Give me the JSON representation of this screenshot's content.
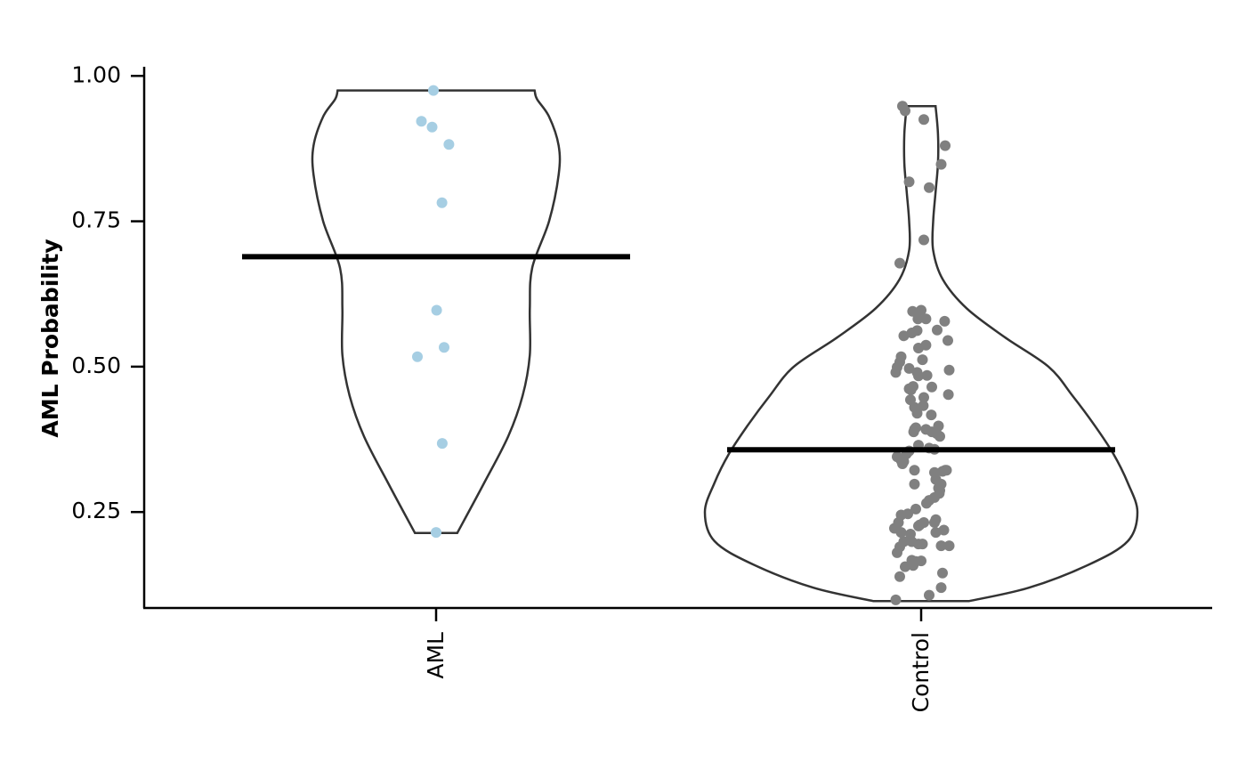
{
  "chart_data": {
    "type": "violin",
    "title": "",
    "xlabel": "",
    "ylabel": "AML Probability",
    "ylim": [
      0.085,
      1.0157
    ],
    "yticks": [
      0.25,
      0.5,
      0.75,
      1.0
    ],
    "ytick_labels": [
      "0.25",
      "0.50",
      "0.75",
      "1.00"
    ],
    "categories": [
      "AML",
      "Control"
    ],
    "grid": false,
    "legend": "none",
    "colors": {
      "AML": "#a6cee3",
      "Control": "#808080",
      "violin_outline": "#333333",
      "mean_line": "#000000",
      "axis": "#000000"
    },
    "groups": [
      {
        "name": "AML",
        "mean": 0.689,
        "range": [
          0.214,
          0.975
        ],
        "density": [
          [
            0.214,
            0.088
          ],
          [
            0.3,
            0.2
          ],
          [
            0.38,
            0.3
          ],
          [
            0.45,
            0.36
          ],
          [
            0.52,
            0.39
          ],
          [
            0.6,
            0.39
          ],
          [
            0.67,
            0.4
          ],
          [
            0.75,
            0.47
          ],
          [
            0.83,
            0.51
          ],
          [
            0.88,
            0.51
          ],
          [
            0.93,
            0.47
          ],
          [
            0.96,
            0.42
          ],
          [
            0.975,
            0.41
          ]
        ],
        "points": [
          [
            -0.01,
            0.975
          ],
          [
            -0.055,
            0.922
          ],
          [
            -0.015,
            0.912
          ],
          [
            0.048,
            0.882
          ],
          [
            0.022,
            0.782
          ],
          [
            0.002,
            0.597
          ],
          [
            0.03,
            0.533
          ],
          [
            -0.07,
            0.517
          ],
          [
            0.023,
            0.368
          ],
          [
            0.0,
            0.215
          ]
        ]
      },
      {
        "name": "Control",
        "mean": 0.357,
        "range": [
          0.097,
          0.948
        ],
        "density": [
          [
            0.097,
            0.2
          ],
          [
            0.12,
            0.45
          ],
          [
            0.16,
            0.7
          ],
          [
            0.2,
            0.86
          ],
          [
            0.25,
            0.9
          ],
          [
            0.3,
            0.86
          ],
          [
            0.35,
            0.8
          ],
          [
            0.4,
            0.72
          ],
          [
            0.45,
            0.63
          ],
          [
            0.5,
            0.53
          ],
          [
            0.55,
            0.35
          ],
          [
            0.6,
            0.19
          ],
          [
            0.65,
            0.09
          ],
          [
            0.7,
            0.05
          ],
          [
            0.75,
            0.05
          ],
          [
            0.8,
            0.06
          ],
          [
            0.85,
            0.07
          ],
          [
            0.9,
            0.07
          ],
          [
            0.948,
            0.06
          ]
        ],
        "points": [
          [
            -0.07,
            0.948
          ],
          [
            -0.06,
            0.94
          ],
          [
            0.01,
            0.925
          ],
          [
            0.09,
            0.88
          ],
          [
            0.075,
            0.848
          ],
          [
            -0.045,
            0.818
          ],
          [
            0.03,
            0.808
          ],
          [
            0.01,
            0.718
          ],
          [
            -0.08,
            0.678
          ],
          [
            -0.032,
            0.595
          ],
          [
            0.0,
            0.597
          ],
          [
            0.018,
            0.582
          ],
          [
            -0.012,
            0.582
          ],
          [
            0.088,
            0.578
          ],
          [
            0.06,
            0.563
          ],
          [
            -0.015,
            0.562
          ],
          [
            -0.035,
            0.558
          ],
          [
            -0.065,
            0.553
          ],
          [
            0.1,
            0.545
          ],
          [
            0.018,
            0.537
          ],
          [
            -0.01,
            0.532
          ],
          [
            -0.075,
            0.517
          ],
          [
            0.005,
            0.512
          ],
          [
            -0.08,
            0.508
          ],
          [
            -0.09,
            0.499
          ],
          [
            -0.045,
            0.497
          ],
          [
            0.105,
            0.494
          ],
          [
            -0.095,
            0.49
          ],
          [
            -0.015,
            0.49
          ],
          [
            0.022,
            0.485
          ],
          [
            -0.01,
            0.484
          ],
          [
            -0.03,
            0.466
          ],
          [
            0.04,
            0.465
          ],
          [
            -0.038,
            0.46
          ],
          [
            -0.045,
            0.462
          ],
          [
            0.102,
            0.452
          ],
          [
            0.01,
            0.447
          ],
          [
            -0.04,
            0.443
          ],
          [
            0.008,
            0.433
          ],
          [
            -0.025,
            0.43
          ],
          [
            -0.015,
            0.42
          ],
          [
            0.038,
            0.417
          ],
          [
            0.065,
            0.398
          ],
          [
            -0.02,
            0.395
          ],
          [
            -0.025,
            0.392
          ],
          [
            0.018,
            0.392
          ],
          [
            0.04,
            0.388
          ],
          [
            0.058,
            0.385
          ],
          [
            0.07,
            0.38
          ],
          [
            -0.028,
            0.388
          ],
          [
            -0.01,
            0.365
          ],
          [
            0.03,
            0.36
          ],
          [
            0.05,
            0.358
          ],
          [
            -0.045,
            0.355
          ],
          [
            -0.055,
            0.35
          ],
          [
            -0.09,
            0.345
          ],
          [
            -0.065,
            0.337
          ],
          [
            -0.075,
            0.339
          ],
          [
            -0.07,
            0.333
          ],
          [
            0.09,
            0.322
          ],
          [
            0.095,
            0.322
          ],
          [
            -0.025,
            0.322
          ],
          [
            0.05,
            0.318
          ],
          [
            0.08,
            0.32
          ],
          [
            0.055,
            0.306
          ],
          [
            -0.025,
            0.298
          ],
          [
            0.075,
            0.298
          ],
          [
            0.065,
            0.291
          ],
          [
            0.07,
            0.287
          ],
          [
            0.068,
            0.282
          ],
          [
            0.05,
            0.275
          ],
          [
            0.03,
            0.27
          ],
          [
            0.02,
            0.265
          ],
          [
            -0.02,
            0.255
          ],
          [
            -0.05,
            0.247
          ],
          [
            -0.075,
            0.245
          ],
          [
            -0.085,
            0.232
          ],
          [
            0.055,
            0.237
          ],
          [
            0.05,
            0.232
          ],
          [
            0.01,
            0.232
          ],
          [
            -0.005,
            0.228
          ],
          [
            -0.01,
            0.226
          ],
          [
            -0.1,
            0.222
          ],
          [
            0.085,
            0.219
          ],
          [
            0.055,
            0.215
          ],
          [
            -0.075,
            0.215
          ],
          [
            -0.04,
            0.212
          ],
          [
            -0.065,
            0.199
          ],
          [
            -0.035,
            0.199
          ],
          [
            -0.08,
            0.19
          ],
          [
            -0.01,
            0.195
          ],
          [
            0.005,
            0.195
          ],
          [
            0.075,
            0.192
          ],
          [
            0.105,
            0.192
          ],
          [
            -0.09,
            0.18
          ],
          [
            -0.035,
            0.167
          ],
          [
            -0.02,
            0.165
          ],
          [
            -0.03,
            0.158
          ],
          [
            -0.06,
            0.156
          ],
          [
            0.0,
            0.166
          ],
          [
            0.08,
            0.145
          ],
          [
            -0.08,
            0.139
          ],
          [
            0.075,
            0.12
          ],
          [
            0.03,
            0.107
          ],
          [
            -0.095,
            0.099
          ]
        ]
      }
    ]
  }
}
